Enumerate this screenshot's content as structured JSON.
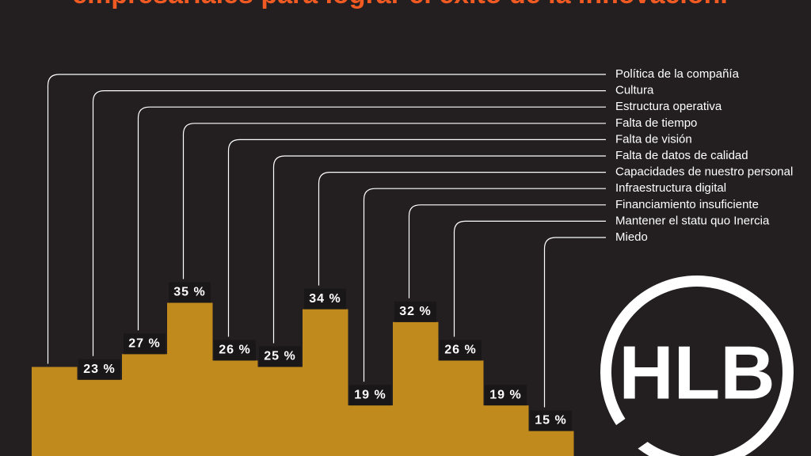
{
  "chart_data": {
    "type": "bar",
    "title": "empresariales para lograr el éxito de la innovación.",
    "categories": [
      "Política de la compañía",
      "Cultura",
      "Estructura operativa",
      "Falta de tiempo",
      "Falta de visión",
      "Falta de datos de calidad",
      "Capacidades de nuestro  personal",
      "Infraestructura digital",
      "Financiamiento insuficiente",
      "Mantener el statu quo Inercia",
      null,
      "Miedo"
    ],
    "values": [
      25,
      23,
      27,
      35,
      26,
      25,
      34,
      19,
      32,
      26,
      19,
      15
    ],
    "value_labels": [
      null,
      "23 %",
      "27 %",
      "35 %",
      "26 %",
      "25 %",
      "34 %",
      "19 %",
      "32 %",
      "26 %",
      "19 %",
      "15 %"
    ],
    "color": "#c08a1c",
    "logo": "HLB"
  }
}
